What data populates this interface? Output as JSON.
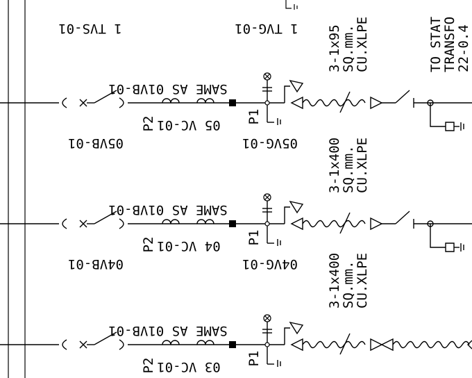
{
  "rows": [
    {
      "breaker_tag": "05VB-01",
      "vacuum_tag": "05VG-01",
      "ct_tag": "05 VC-01",
      "same_as": "SAME AS 01VB-01",
      "p1": "P1",
      "p2": "P2",
      "cable": [
        "3-1x400",
        "SQ.mm.",
        "CU.XLPE"
      ]
    },
    {
      "breaker_tag": "04VB-01",
      "vacuum_tag": "04VG-01",
      "ct_tag": "04 VC-01",
      "same_as": "SAME AS 01VB-01",
      "p1": "P1",
      "p2": "P2",
      "cable": [
        "3-1x400",
        "SQ.mm.",
        "CU.XLPE"
      ]
    },
    {
      "breaker_tag": "",
      "vacuum_tag": "",
      "ct_tag": "03 VC-01",
      "same_as": "SAME AS 01VB-01",
      "p1": "P1",
      "p2": "P2",
      "cable": [
        "",
        "",
        ""
      ]
    }
  ],
  "top": {
    "tvs_tag": "1 TVS-01",
    "tvg_tag": "1 TVG-01",
    "cable": [
      "3-1x95",
      "SQ.mm.",
      "CU.XLPE"
    ],
    "note": [
      "TO STAT",
      "TRANSFO",
      "22-0.4"
    ]
  },
  "colors": {
    "line": "#000000",
    "background": "#ffffff"
  }
}
